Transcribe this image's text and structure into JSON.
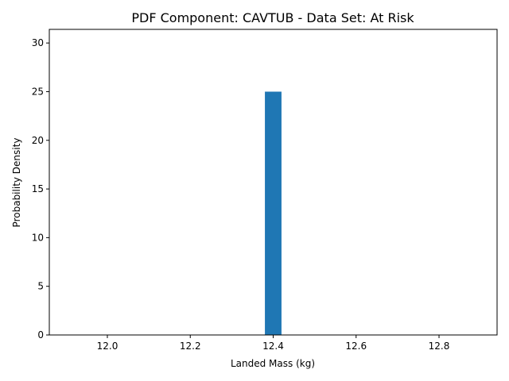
{
  "chart_data": {
    "type": "bar",
    "title": "PDF Component: CAVTUB - Data Set: At Risk",
    "xlabel": "Landed Mass (kg)",
    "ylabel": "Probability Density",
    "xlim": [
      11.86,
      12.94
    ],
    "ylim": [
      0,
      31.4
    ],
    "x_ticks": [
      12.0,
      12.2,
      12.4,
      12.6,
      12.8
    ],
    "x_tick_labels": [
      "12.0",
      "12.2",
      "12.4",
      "12.6",
      "12.8"
    ],
    "y_ticks": [
      0,
      5,
      10,
      15,
      20,
      25,
      30
    ],
    "y_tick_labels": [
      "0",
      "5",
      "10",
      "15",
      "20",
      "25",
      "30"
    ],
    "bars": [
      {
        "x_start": 12.38,
        "x_end": 12.42,
        "value": 25
      }
    ],
    "grid": false,
    "color": "#1f77b4"
  }
}
